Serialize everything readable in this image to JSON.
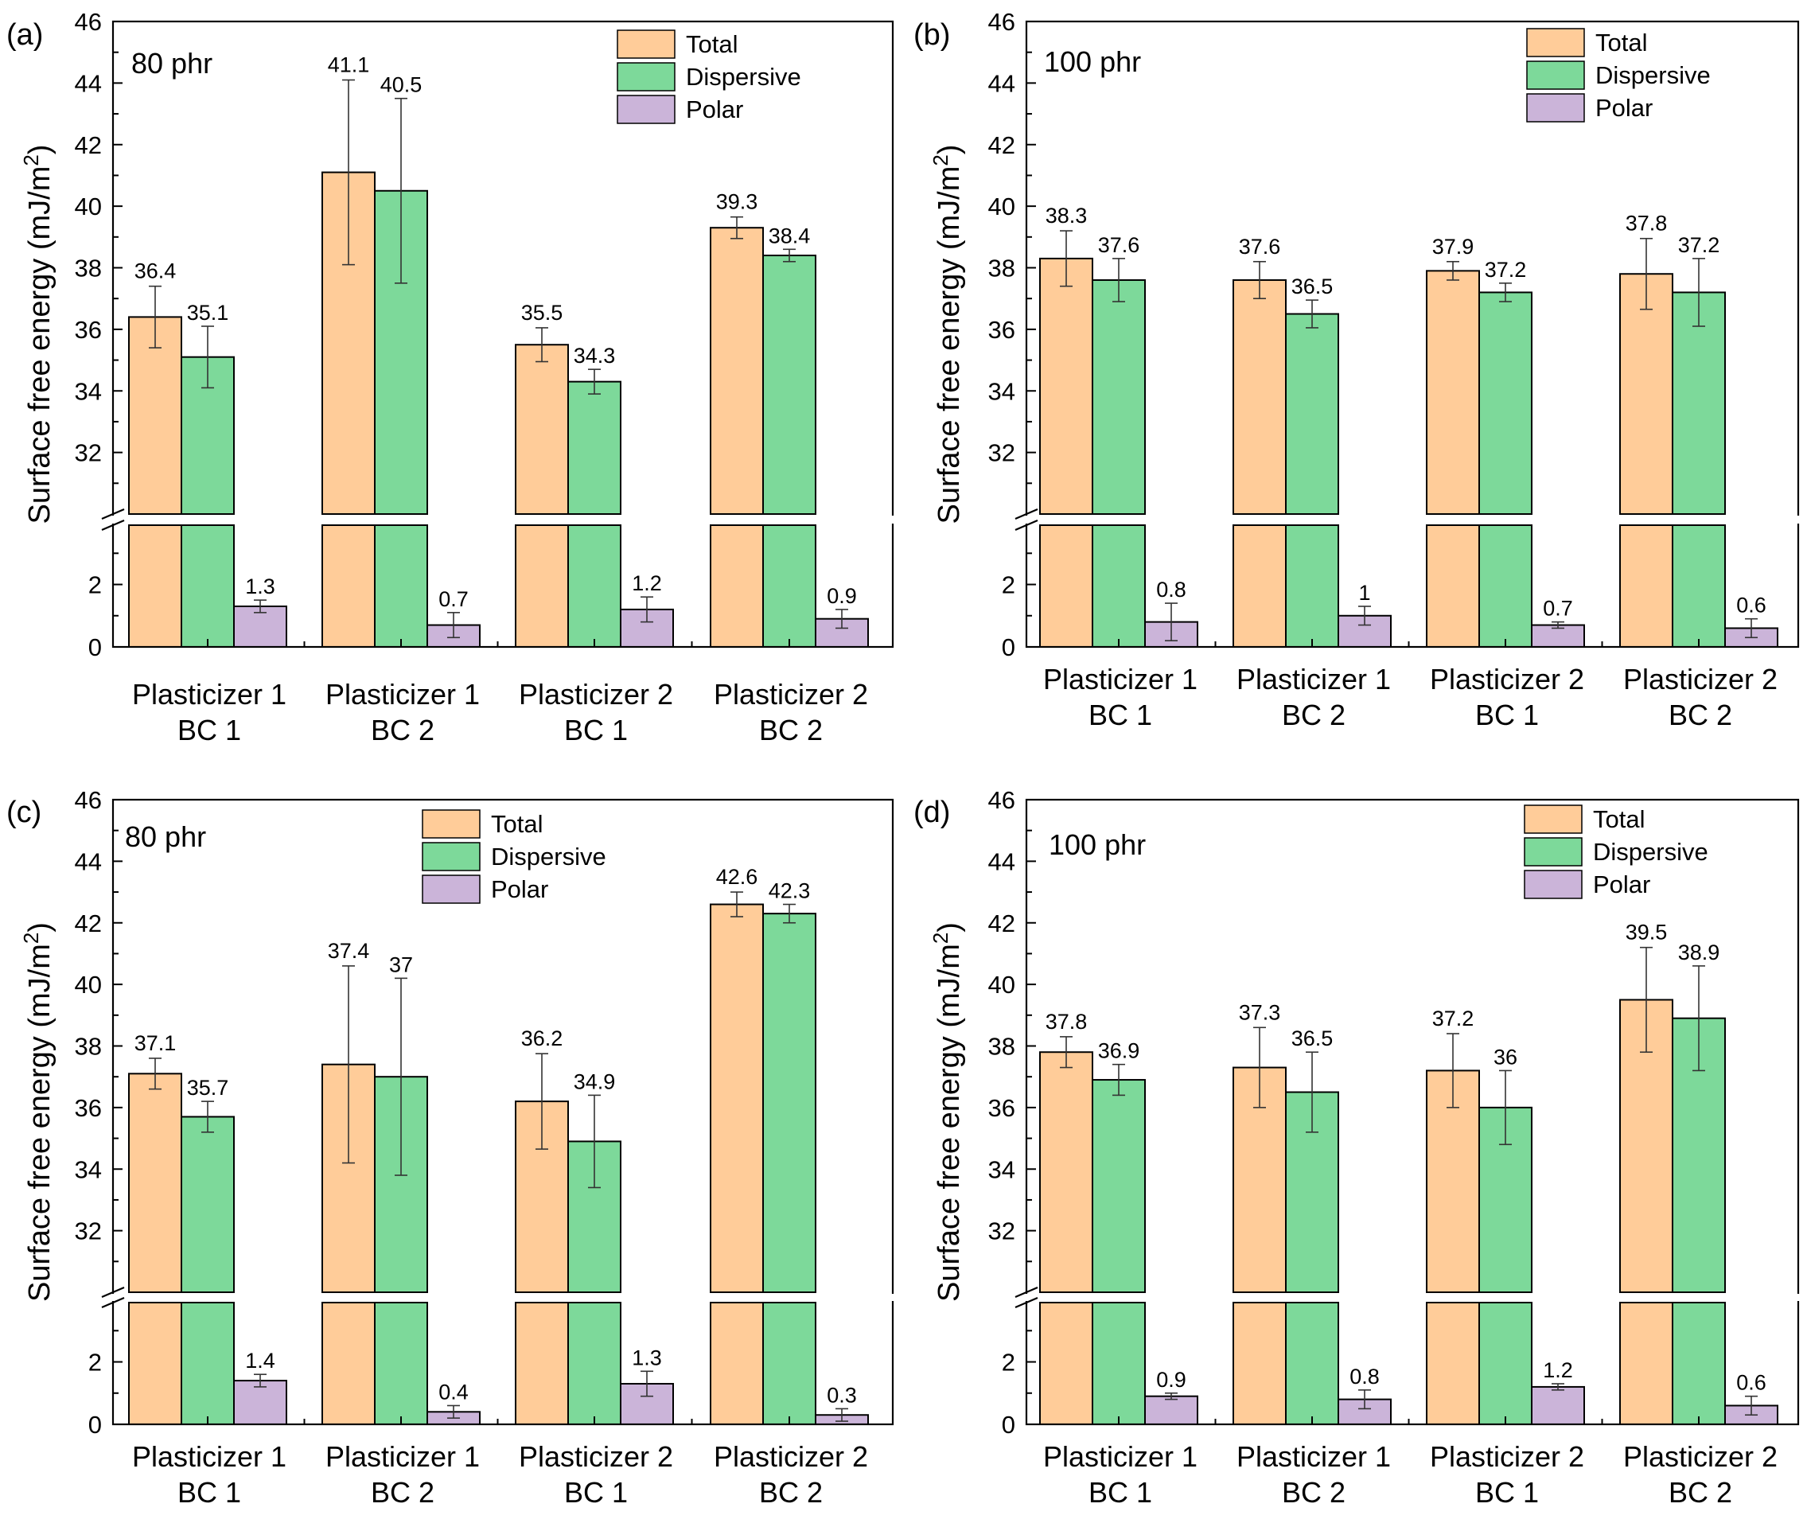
{
  "figure": {
    "colors": {
      "Total": "#ffcc99",
      "Dispersive": "#7dd99a",
      "Polar": "#cbb4d9"
    },
    "y_axis_label": "Surface free energy (mJ/m",
    "y_axis_label_sup": "2",
    "y_axis_label_end": ")"
  },
  "chart_data": [
    {
      "type": "bar",
      "panel": "(a)",
      "title": "80 phr",
      "categories": [
        [
          "Plasticizer 1",
          "BC 1"
        ],
        [
          "Plasticizer 1",
          "BC 2"
        ],
        [
          "Plasticizer 2",
          "BC 1"
        ],
        [
          "Plasticizer 2",
          "BC 2"
        ]
      ],
      "series": [
        {
          "name": "Total",
          "values": [
            36.4,
            41.1,
            35.5,
            39.3
          ],
          "errors": [
            1.0,
            3.0,
            0.55,
            0.35
          ]
        },
        {
          "name": "Dispersive",
          "values": [
            35.1,
            40.5,
            34.3,
            38.4
          ],
          "errors": [
            1.0,
            3.0,
            0.4,
            0.2
          ]
        },
        {
          "name": "Polar",
          "values": [
            1.3,
            0.7,
            1.2,
            0.9
          ],
          "errors": [
            0.2,
            0.4,
            0.4,
            0.3
          ]
        }
      ],
      "ylabel": "Surface free energy (mJ/m2)",
      "y_broken_axis": {
        "lower": [
          0,
          3.9
        ],
        "upper": [
          30.0,
          46
        ]
      },
      "yticks_lower": [
        0,
        2
      ],
      "yticks_upper": [
        32,
        34,
        36,
        38,
        40,
        42,
        44,
        46
      ],
      "legend": "top-right"
    },
    {
      "type": "bar",
      "panel": "(b)",
      "title": "100 phr",
      "categories": [
        [
          "Plasticizer 1",
          "BC 1"
        ],
        [
          "Plasticizer 1",
          "BC 2"
        ],
        [
          "Plasticizer 2",
          "BC 1"
        ],
        [
          "Plasticizer 2",
          "BC 2"
        ]
      ],
      "series": [
        {
          "name": "Total",
          "values": [
            38.3,
            37.6,
            37.9,
            37.8
          ],
          "errors": [
            0.9,
            0.6,
            0.3,
            1.15
          ]
        },
        {
          "name": "Dispersive",
          "values": [
            37.6,
            36.5,
            37.2,
            37.2
          ],
          "errors": [
            0.7,
            0.45,
            0.3,
            1.1
          ]
        },
        {
          "name": "Polar",
          "values": [
            0.8,
            1,
            0.7,
            0.6
          ],
          "errors": [
            0.6,
            0.3,
            0.1,
            0.3
          ]
        }
      ],
      "ylabel": "Surface free energy (mJ/m2)",
      "y_broken_axis": {
        "lower": [
          0,
          3.9
        ],
        "upper": [
          30.0,
          46
        ]
      },
      "yticks_lower": [
        0,
        2
      ],
      "yticks_upper": [
        32,
        34,
        36,
        38,
        40,
        42,
        44,
        46
      ],
      "legend": "top-right"
    },
    {
      "type": "bar",
      "panel": "(c)",
      "title": "80 phr",
      "categories": [
        [
          "Plasticizer 1",
          "BC 1"
        ],
        [
          "Plasticizer 1",
          "BC 2"
        ],
        [
          "Plasticizer 2",
          "BC 1"
        ],
        [
          "Plasticizer 2",
          "BC 2"
        ]
      ],
      "series": [
        {
          "name": "Total",
          "values": [
            37.1,
            37.4,
            36.2,
            42.6
          ],
          "errors": [
            0.5,
            3.2,
            1.55,
            0.4
          ]
        },
        {
          "name": "Dispersive",
          "values": [
            35.7,
            37,
            34.9,
            42.3
          ],
          "errors": [
            0.5,
            3.2,
            1.5,
            0.3
          ]
        },
        {
          "name": "Polar",
          "values": [
            1.4,
            0.4,
            1.3,
            0.3
          ],
          "errors": [
            0.2,
            0.2,
            0.4,
            0.2
          ]
        }
      ],
      "ylabel": "Surface free energy (mJ/m2)",
      "y_broken_axis": {
        "lower": [
          0,
          3.9
        ],
        "upper": [
          30.0,
          46
        ]
      },
      "yticks_lower": [
        0,
        2
      ],
      "yticks_upper": [
        32,
        34,
        36,
        38,
        40,
        42,
        44,
        46
      ],
      "legend": "top-right"
    },
    {
      "type": "bar",
      "panel": "(d)",
      "title": "100 phr",
      "categories": [
        [
          "Plasticizer 1",
          "BC 1"
        ],
        [
          "Plasticizer 1",
          "BC 2"
        ],
        [
          "Plasticizer 2",
          "BC 1"
        ],
        [
          "Plasticizer 2",
          "BC 2"
        ]
      ],
      "series": [
        {
          "name": "Total",
          "values": [
            37.8,
            37.3,
            37.2,
            39.5
          ],
          "errors": [
            0.5,
            1.3,
            1.2,
            1.7
          ]
        },
        {
          "name": "Dispersive",
          "values": [
            36.9,
            36.5,
            36,
            38.9
          ],
          "errors": [
            0.5,
            1.3,
            1.2,
            1.7
          ]
        },
        {
          "name": "Polar",
          "values": [
            0.9,
            0.8,
            1.2,
            0.6
          ],
          "errors": [
            0.1,
            0.3,
            0.1,
            0.3
          ]
        }
      ],
      "ylabel": "Surface free energy (mJ/m2)",
      "y_broken_axis": {
        "lower": [
          0,
          3.9
        ],
        "upper": [
          30.0,
          46
        ]
      },
      "yticks_lower": [
        0,
        2
      ],
      "yticks_upper": [
        32,
        34,
        36,
        38,
        40,
        42,
        44,
        46
      ],
      "legend": "top-right"
    }
  ]
}
